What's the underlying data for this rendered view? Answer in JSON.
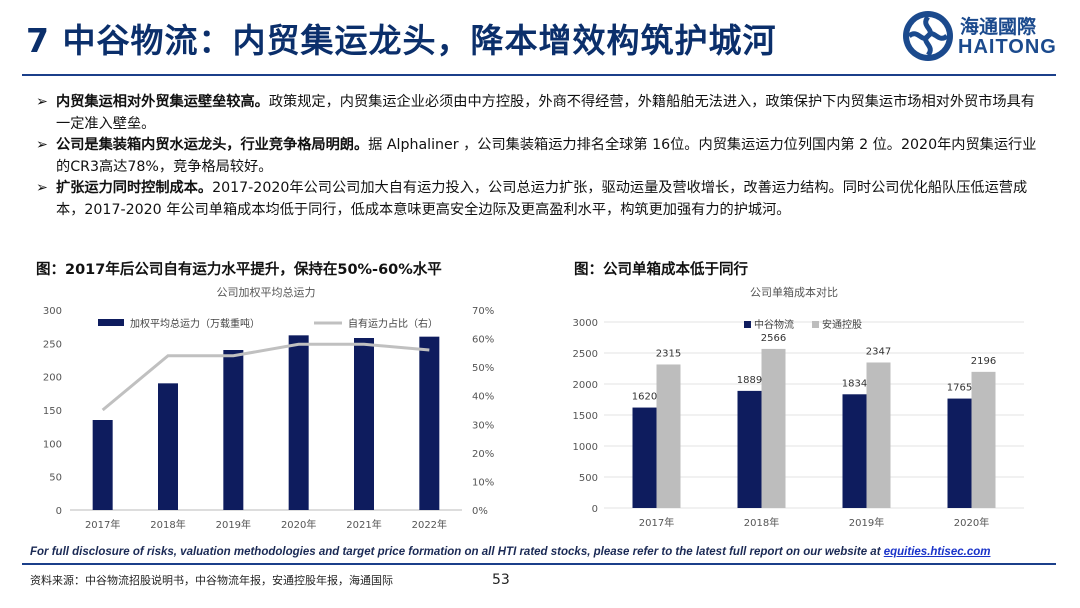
{
  "header": {
    "title": "7 中谷物流：内贸集运龙头，降本增效构筑护城河",
    "logo_cn": "海通國際",
    "logo_en": "HAITONG"
  },
  "bullets": [
    {
      "marker": "➢",
      "bold": "内贸集运相对外贸集运壁垒较高。",
      "text": "政策规定，内贸集运企业必须由中方控股，外商不得经营，外籍船舶无法进入，政策保护下内贸集运市场相对外贸市场具有一定准入壁垒。"
    },
    {
      "marker": "➢",
      "bold": "公司是集装箱内贸水运龙头，行业竞争格局明朗。",
      "text": "据 Alphaliner ，公司集装箱运力排名全球第 16位。内贸集运运力位列国内第 2 位。2020年内贸集运行业的CR3高达78%，竞争格局较好。"
    },
    {
      "marker": "➢",
      "bold": "扩张运力同时控制成本。",
      "text": "2017-2020年公司公司加大自有运力投入，公司总运力扩张，驱动运量及营收增长，改善运力结构。同时公司优化船队压低运营成本，2017-2020 年公司单箱成本均低于同行，低成本意味更高安全边际及更高盈利水平，构筑更加强有力的护城河。"
    }
  ],
  "captions": {
    "left": "图：2017年后公司自有运力水平提升，保持在50%-60%水平",
    "right": "图：公司单箱成本低于同行"
  },
  "chart_data": [
    {
      "type": "bar",
      "title": "公司加权平均总运力",
      "categories": [
        "2017年",
        "2018年",
        "2019年",
        "2020年",
        "2021年",
        "2022年"
      ],
      "series": [
        {
          "name": "加权平均总运力（万载重吨）",
          "type": "bar",
          "axis": "left",
          "color": "#0e1c5e",
          "values": [
            135,
            190,
            240,
            262,
            258,
            260
          ]
        },
        {
          "name": "自有运力占比（右）",
          "type": "line",
          "axis": "right",
          "color": "#c0c0c0",
          "values": [
            35,
            54,
            54,
            58,
            58,
            56
          ]
        }
      ],
      "ylim": [
        0,
        300
      ],
      "yticks": [
        "0",
        "50",
        "100",
        "150",
        "200",
        "250",
        "300"
      ],
      "y2lim": [
        0,
        70
      ],
      "y2ticks": [
        "0%",
        "10%",
        "20%",
        "30%",
        "40%",
        "50%",
        "60%",
        "70%"
      ],
      "legend": "top"
    },
    {
      "type": "bar",
      "title": "公司单箱成本对比",
      "categories": [
        "2017年",
        "2018年",
        "2019年",
        "2020年"
      ],
      "series": [
        {
          "name": "中谷物流",
          "color": "#0e1c5e",
          "values": [
            1620,
            1889,
            1834,
            1765
          ]
        },
        {
          "name": "安通控股",
          "color": "#bdbdbd",
          "values": [
            2315,
            2566,
            2347,
            2196
          ]
        }
      ],
      "ylim": [
        0,
        3000
      ],
      "yticks": [
        "0",
        "500",
        "1000",
        "1500",
        "2000",
        "2500",
        "3000"
      ],
      "grid": true,
      "legend": "top"
    }
  ],
  "footer": {
    "disclosure": "For full disclosure of risks, valuation methodologies and target price formation on all HTI rated stocks, please refer to the latest full report on our website at",
    "link": "equities.htisec.com",
    "source": "资料来源：中谷物流招股说明书，中谷物流年报，安通控股年报，海通国际",
    "page": "53"
  }
}
